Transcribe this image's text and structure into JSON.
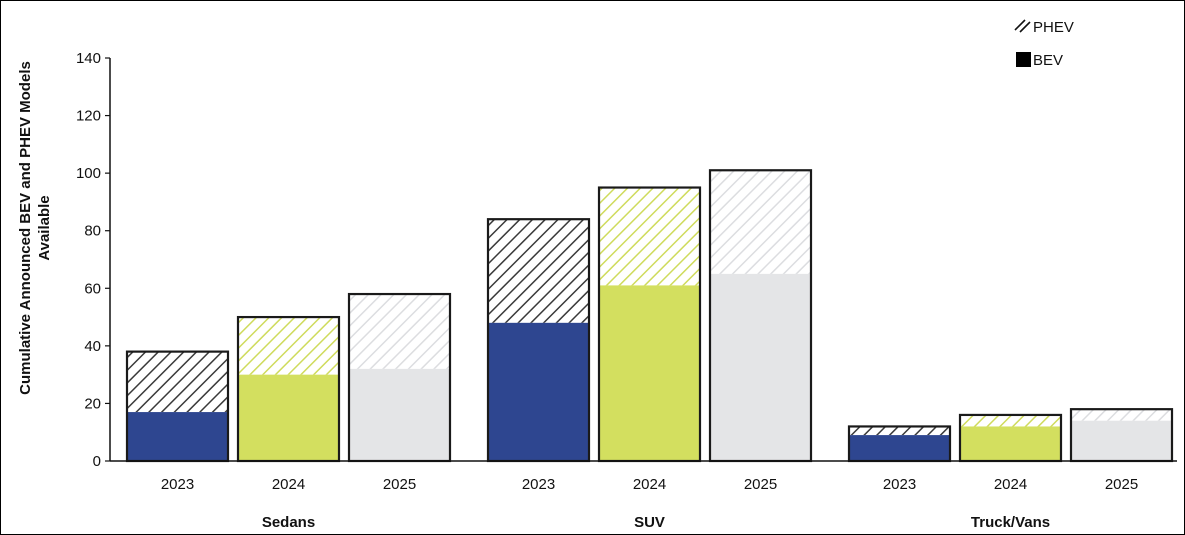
{
  "chart_data": {
    "type": "bar",
    "stacked": true,
    "ylabel_line1": "Cumulative Announced  BEV and PHEV Models",
    "ylabel_line2": "Available",
    "ylim": [
      0,
      140
    ],
    "yticks": [
      "0",
      "20",
      "40",
      "60",
      "80",
      "100",
      "120",
      "140"
    ],
    "groups": [
      {
        "name": "Sedans",
        "years": [
          "2023",
          "2024",
          "2025"
        ],
        "bev": [
          17,
          30,
          32
        ],
        "phev": [
          21,
          20,
          26
        ]
      },
      {
        "name": "SUV",
        "years": [
          "2023",
          "2024",
          "2025"
        ],
        "bev": [
          48,
          61,
          65
        ],
        "phev": [
          36,
          34,
          36
        ]
      },
      {
        "name": "Truck/Vans",
        "years": [
          "2023",
          "2024",
          "2025"
        ],
        "bev": [
          9,
          12,
          14
        ],
        "phev": [
          3,
          4,
          4
        ]
      }
    ],
    "year_colors": {
      "2023": "#2e4690",
      "2024": "#d3df5f",
      "2025": "#e4e5e7"
    },
    "hatch_colors": {
      "2023": "#3a3a3a",
      "2024": "#cfdb5c",
      "2025": "#dcdde0"
    },
    "legend": [
      {
        "label": "PHEV",
        "style": "hatched"
      },
      {
        "label": "BEV",
        "style": "solid"
      }
    ],
    "legend_position": "top-right",
    "grid": false
  }
}
